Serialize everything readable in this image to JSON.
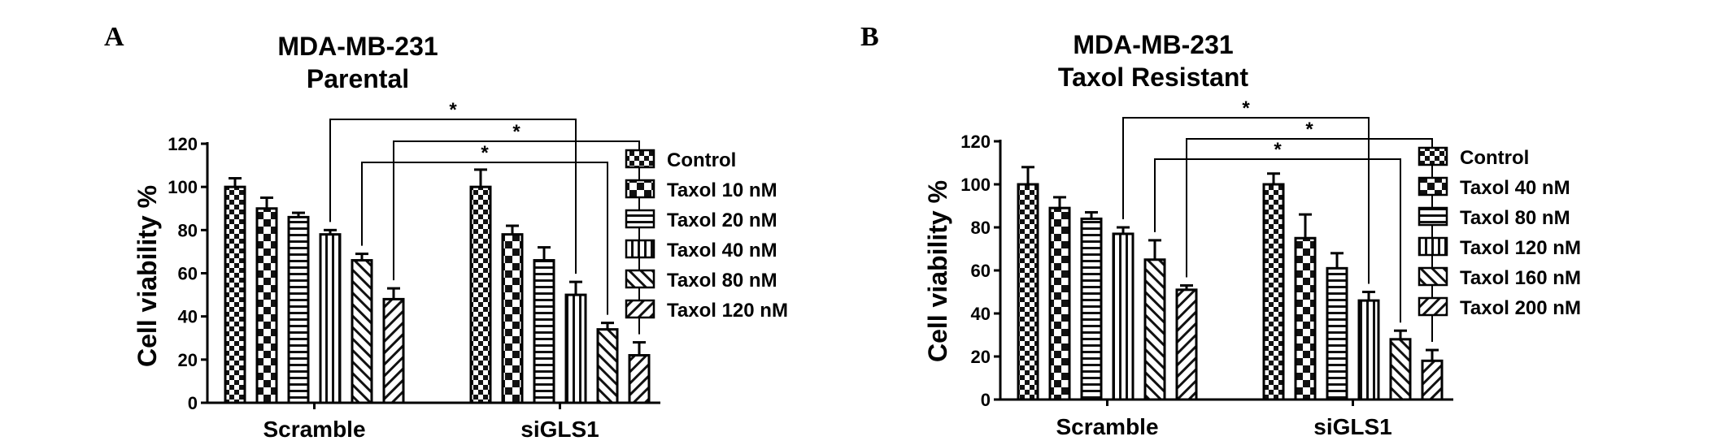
{
  "chart_data": [
    {
      "type": "bar",
      "panel": "A",
      "title": [
        "MDA-MB-231",
        "Parental"
      ],
      "ylabel": "Cell viability %",
      "xlabel": "",
      "ylim": [
        0,
        120
      ],
      "yticks": [
        0,
        20,
        40,
        60,
        80,
        100,
        120
      ],
      "categories": [
        "Scramble",
        "siGLS1"
      ],
      "legend_position": "right",
      "series": [
        {
          "name": "Control",
          "pattern": "checker",
          "values": [
            100,
            100
          ],
          "errors": [
            4,
            8
          ]
        },
        {
          "name": "Taxol 10 nM",
          "pattern": "checker-large",
          "values": [
            90,
            78
          ],
          "errors": [
            5,
            4
          ]
        },
        {
          "name": "Taxol 20 nM",
          "pattern": "hlines",
          "values": [
            86,
            66
          ],
          "errors": [
            2,
            6
          ]
        },
        {
          "name": "Taxol 40 nM",
          "pattern": "vlines",
          "values": [
            78,
            50
          ],
          "errors": [
            2,
            6
          ]
        },
        {
          "name": "Taxol 80 nM",
          "pattern": "diag-fwd",
          "values": [
            66,
            34
          ],
          "errors": [
            3,
            3
          ]
        },
        {
          "name": "Taxol 120 nM",
          "pattern": "diag-back",
          "values": [
            48,
            22
          ],
          "errors": [
            5,
            6
          ]
        }
      ],
      "significance": [
        {
          "from": [
            0,
            3
          ],
          "to": [
            1,
            3
          ],
          "label": "*"
        },
        {
          "from": [
            0,
            5
          ],
          "to": [
            1,
            5
          ],
          "label": "*"
        },
        {
          "from": [
            0,
            4
          ],
          "to": [
            1,
            4
          ],
          "label": "*"
        }
      ]
    },
    {
      "type": "bar",
      "panel": "B",
      "title": [
        "MDA-MB-231",
        "Taxol Resistant"
      ],
      "ylabel": "Cell viability %",
      "xlabel": "",
      "ylim": [
        0,
        120
      ],
      "yticks": [
        0,
        20,
        40,
        60,
        80,
        100,
        120
      ],
      "categories": [
        "Scramble",
        "siGLS1"
      ],
      "legend_position": "right",
      "series": [
        {
          "name": "Control",
          "pattern": "checker",
          "values": [
            100,
            100
          ],
          "errors": [
            8,
            5
          ]
        },
        {
          "name": "Taxol 40 nM",
          "pattern": "checker-large",
          "values": [
            89,
            75
          ],
          "errors": [
            5,
            11
          ]
        },
        {
          "name": "Taxol 80 nM",
          "pattern": "hlines",
          "values": [
            84,
            61
          ],
          "errors": [
            3,
            7
          ]
        },
        {
          "name": "Taxol 120 nM",
          "pattern": "vlines",
          "values": [
            77,
            46
          ],
          "errors": [
            3,
            4
          ]
        },
        {
          "name": "Taxol 160 nM",
          "pattern": "diag-fwd",
          "values": [
            65,
            28
          ],
          "errors": [
            9,
            4
          ]
        },
        {
          "name": "Taxol 200 nM",
          "pattern": "diag-back",
          "values": [
            51,
            18
          ],
          "errors": [
            2,
            5
          ]
        }
      ],
      "significance": [
        {
          "from": [
            0,
            3
          ],
          "to": [
            1,
            3
          ],
          "label": "*"
        },
        {
          "from": [
            0,
            5
          ],
          "to": [
            1,
            5
          ],
          "label": "*"
        },
        {
          "from": [
            0,
            4
          ],
          "to": [
            1,
            4
          ],
          "label": "*"
        }
      ]
    }
  ]
}
